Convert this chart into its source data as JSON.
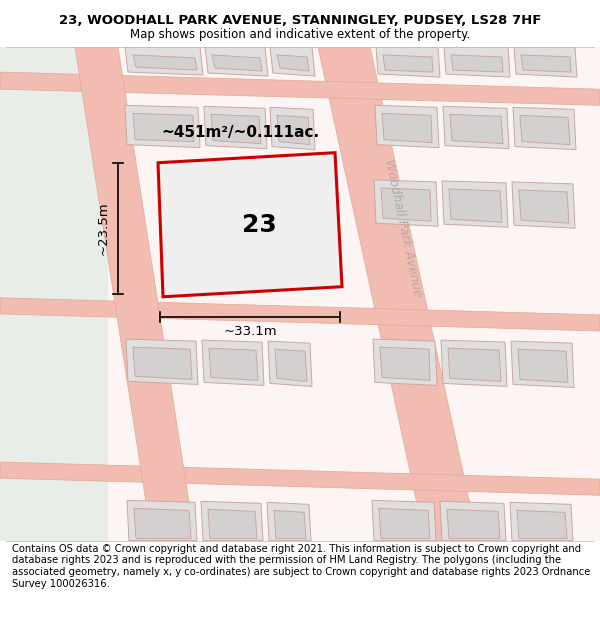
{
  "title_line1": "23, WOODHALL PARK AVENUE, STANNINGLEY, PUDSEY, LS28 7HF",
  "title_line2": "Map shows position and indicative extent of the property.",
  "footer_text": "Contains OS data © Crown copyright and database right 2021. This information is subject to Crown copyright and database rights 2023 and is reproduced with the permission of HM Land Registry. The polygons (including the associated geometry, namely x, y co-ordinates) are subject to Crown copyright and database rights 2023 Ordnance Survey 100026316.",
  "street_label": "Woodhall Park Avenue",
  "street_label_color": "#b8a8a0",
  "area_label": "~451m²/~0.111ac.",
  "number_label": "23",
  "dim_width": "~33.1m",
  "dim_height": "~23.5m",
  "bg_left_color": "#e8ede8",
  "bg_right_color": "#fdf5f3",
  "road_color": "#f2bdb0",
  "road_edge_color": "#dda898",
  "building_fill": "#e0dede",
  "building_edge": "#c8a8a0",
  "highlight_fill": "#f0efef",
  "highlight_edge": "#cc0000",
  "title_fontsize": 9.5,
  "subtitle_fontsize": 8.5,
  "footer_fontsize": 7.2
}
